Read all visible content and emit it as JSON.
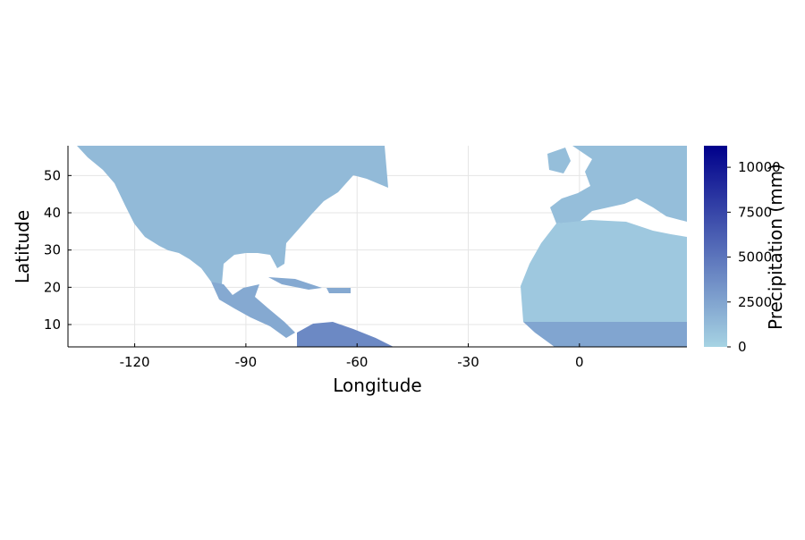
{
  "chart_data": {
    "type": "heatmap",
    "title": "",
    "xlabel": "Longitude",
    "ylabel": "Latitude",
    "xlim": [
      -138,
      29
    ],
    "ylim": [
      4,
      58
    ],
    "x_ticks": [
      -120,
      -90,
      -60,
      -30,
      0
    ],
    "x_tick_labels": [
      "-120",
      "-90",
      "-60",
      "-30",
      "0"
    ],
    "y_ticks": [
      10,
      20,
      30,
      40,
      50
    ],
    "y_tick_labels": [
      "10",
      "20",
      "30",
      "40",
      "50"
    ],
    "grid": true,
    "colorbar": {
      "label": "Precipitation (mm)",
      "range": [
        0,
        11200
      ],
      "ticks": [
        0,
        2500,
        5000,
        7500,
        10000
      ],
      "tick_labels": [
        "0",
        "2500",
        "5000",
        "7500",
        "10000"
      ],
      "color_low": "#a6d3e3",
      "color_high": "#00008b"
    },
    "regions": [
      {
        "name": "north-america",
        "level": 0.12
      },
      {
        "name": "central-america",
        "level": 0.2
      },
      {
        "name": "south-america-north",
        "level": 0.35
      },
      {
        "name": "europe",
        "level": 0.1
      },
      {
        "name": "north-africa",
        "level": 0.05
      },
      {
        "name": "west-africa-coast",
        "level": 0.22
      }
    ]
  }
}
